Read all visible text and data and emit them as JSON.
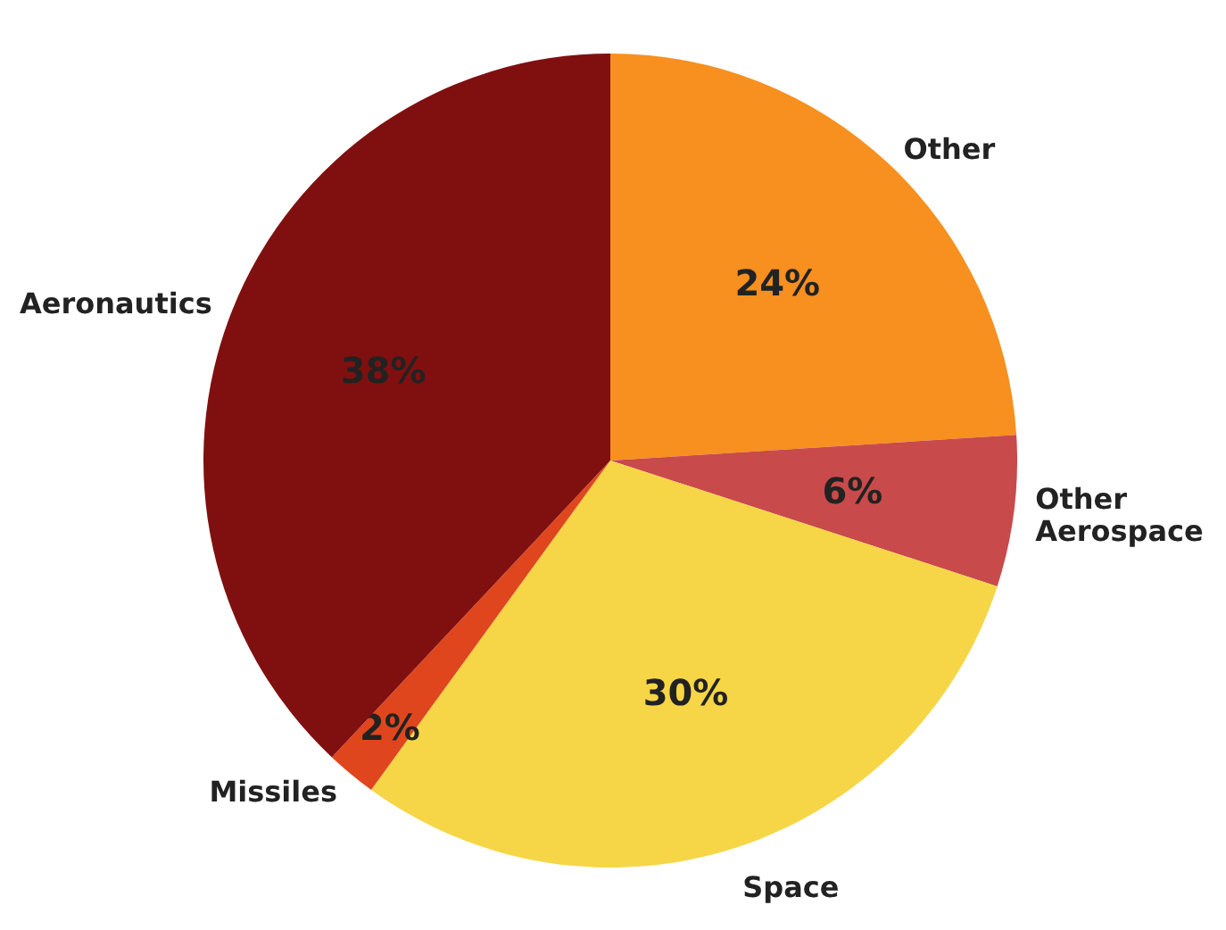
{
  "chart_data": {
    "type": "pie",
    "categories": [
      "Other",
      "Other Aerospace",
      "Space",
      "Missiles",
      "Aeronautics"
    ],
    "values": [
      24,
      6,
      30,
      2,
      38
    ],
    "colors": [
      "#f7901e",
      "#c94a4a",
      "#f6d646",
      "#e0461e",
      "#801010"
    ],
    "value_labels": [
      "24%",
      "6%",
      "30%",
      "2%",
      "38%"
    ]
  }
}
